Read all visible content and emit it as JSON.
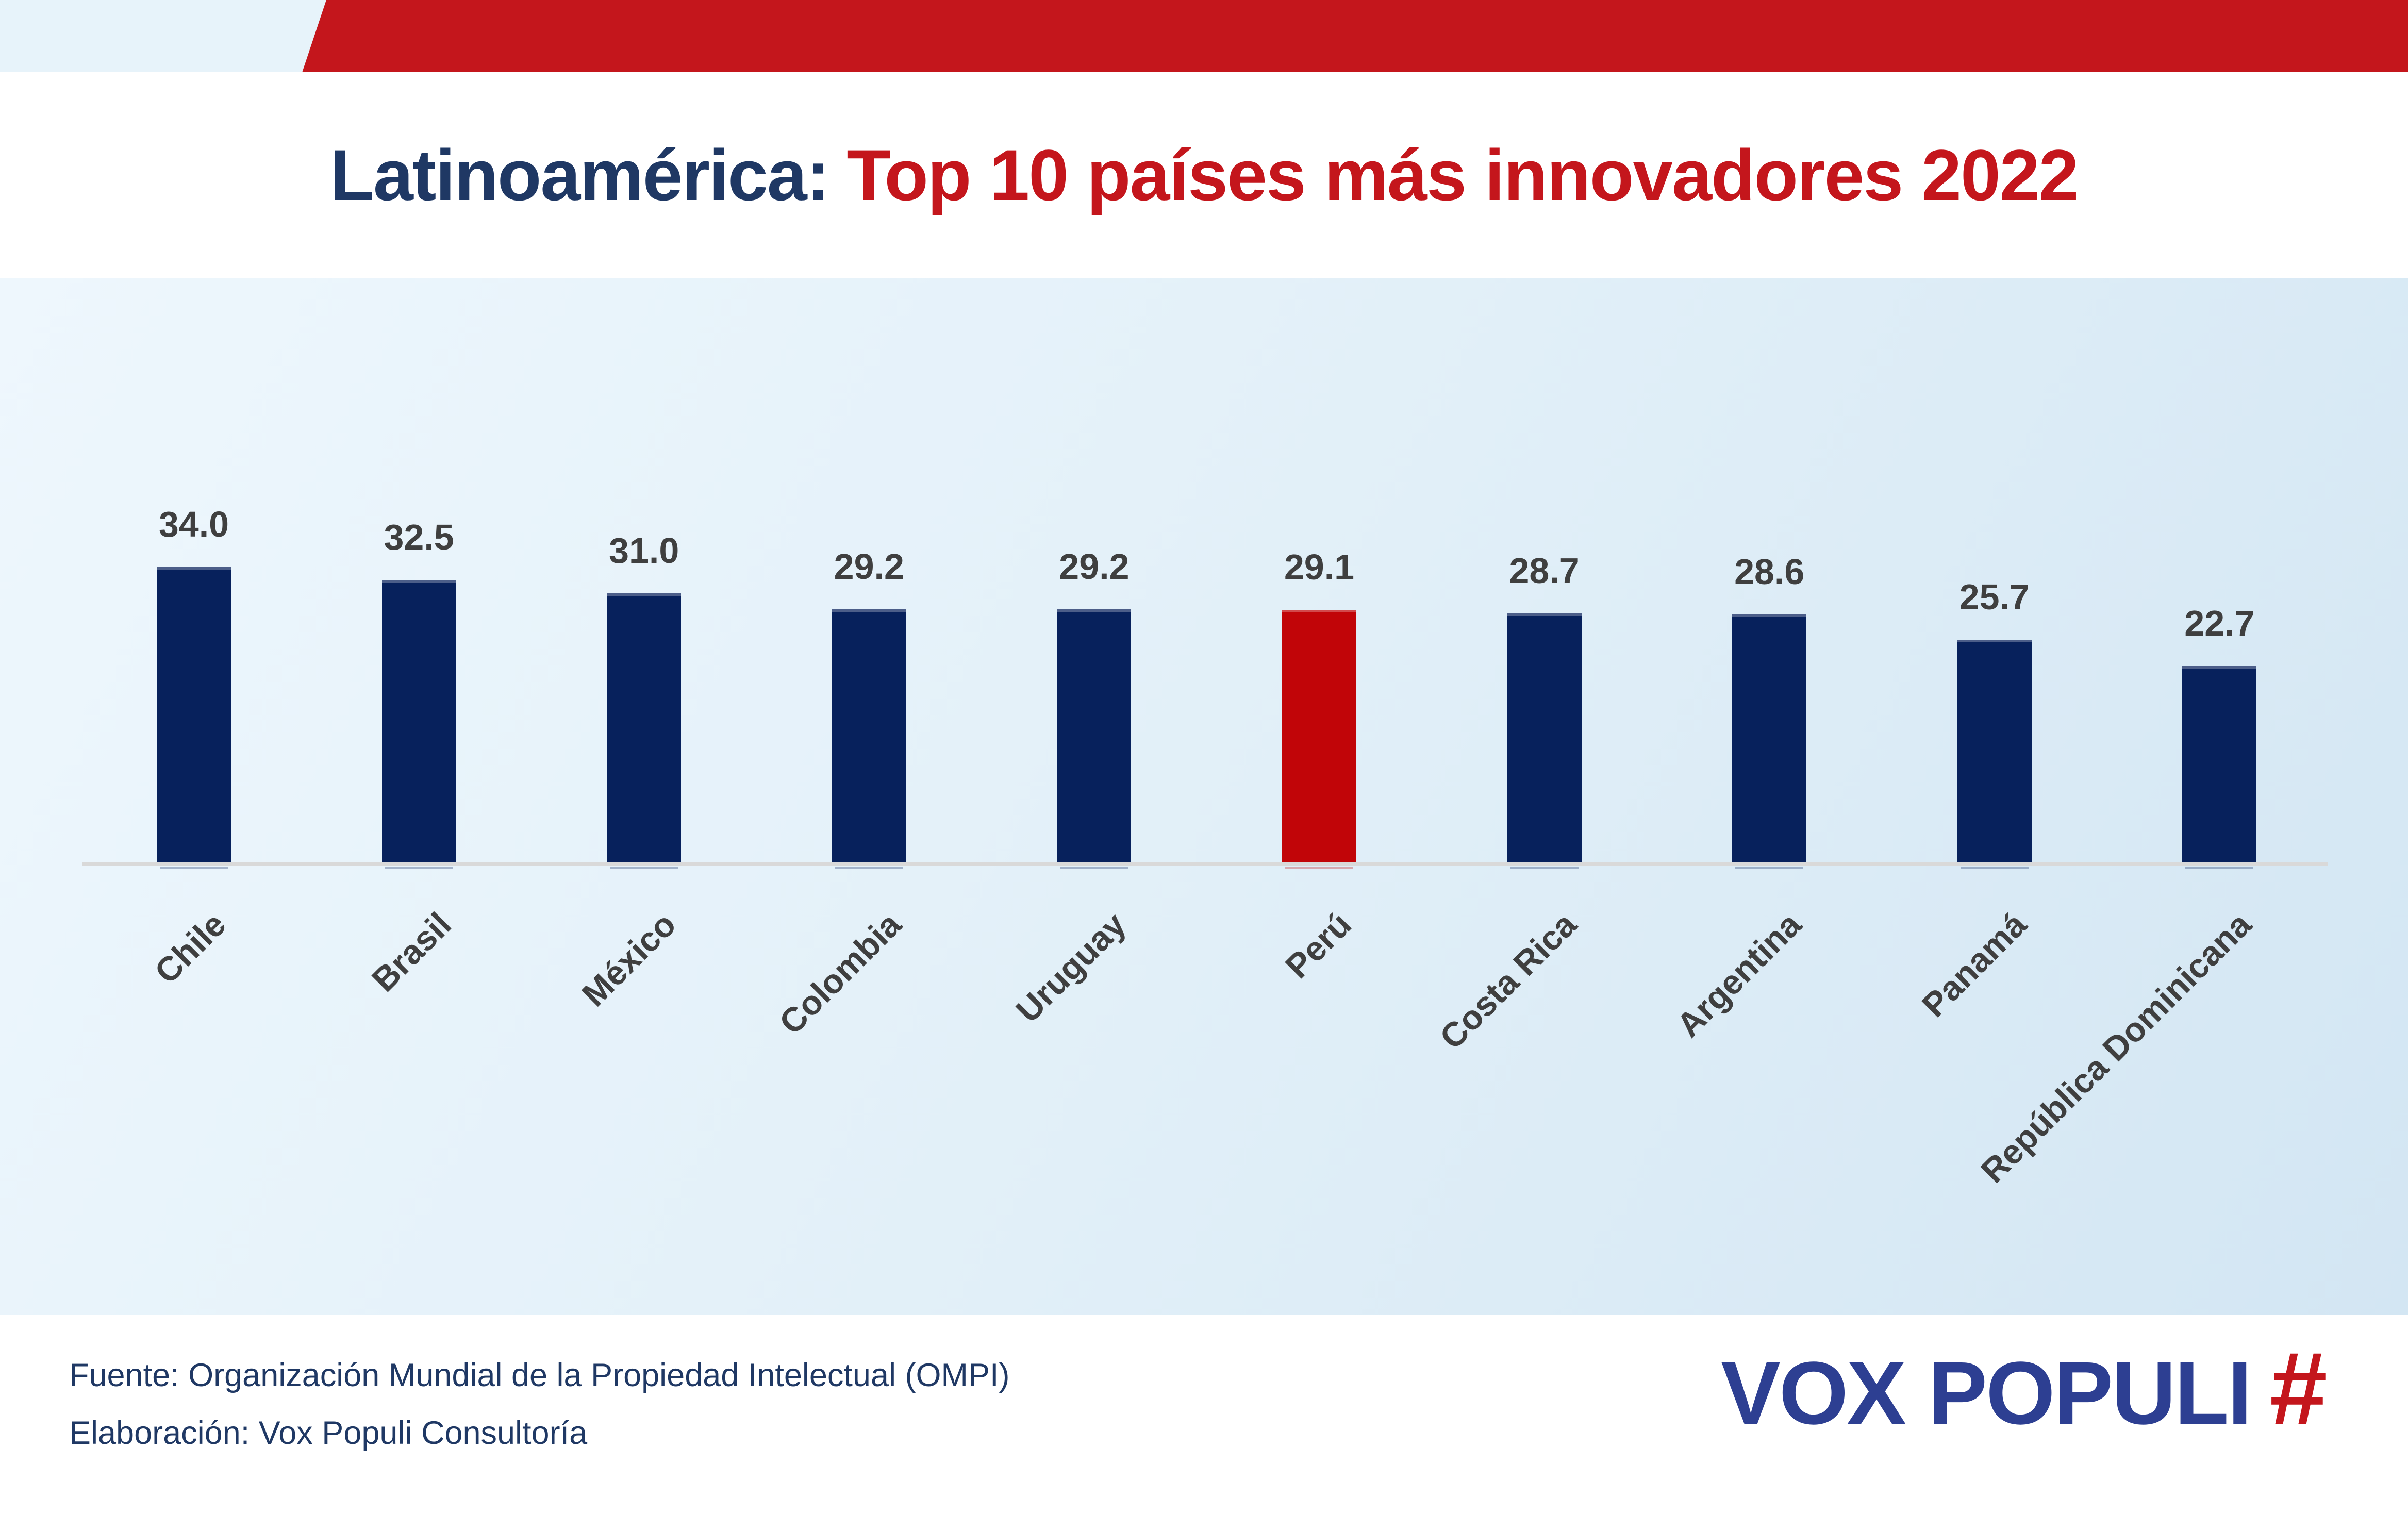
{
  "header": {
    "title_part1": "Latinoamérica:",
    "title_part2": "Top 10 países más innovadores 2022"
  },
  "chart_data": {
    "type": "bar",
    "title": "Latinoamérica: Top 10 países más innovadores 2022",
    "categories": [
      "Chile",
      "Brasil",
      "México",
      "Colombia",
      "Uruguay",
      "Perú",
      "Costa Rica",
      "Argentina",
      "Panamá",
      "República Dominicana"
    ],
    "values": [
      34.0,
      32.5,
      31.0,
      29.2,
      29.2,
      29.1,
      28.7,
      28.6,
      25.7,
      22.7
    ],
    "value_labels": [
      "34.0",
      "32.5",
      "31.0",
      "29.2",
      "29.2",
      "29.1",
      "28.7",
      "28.6",
      "25.7",
      "22.7"
    ],
    "highlight_category": "Perú",
    "bar_color": "#07215c",
    "highlight_color": "#c10508",
    "label_color": "#3f3f3f",
    "axis_line_color": "#d9d9d9",
    "xlabel": "",
    "ylabel": "",
    "ylim": [
      0,
      40
    ],
    "grid": false,
    "legend": false,
    "category_label_rotation_deg": 45,
    "value_labels_shown": true
  },
  "footer": {
    "source": "Fuente: Organización Mundial de la Propiedad Intelectual (OMPI)",
    "elaboration": "Elaboración: Vox Populi Consultoría",
    "logo_text": "VOX POPULI",
    "logo_symbol": "#"
  },
  "colors": {
    "header_ribbon_red": "#c4161c",
    "header_strip_blue": "#e7f3fa",
    "title_navy": "#1f3864",
    "title_red": "#c4161c",
    "chart_bg_light": "#eef7fd",
    "chart_bg_dark": "#d3e6f3",
    "footer_text_navy": "#1f3864",
    "logo_blue": "#2d3f92",
    "logo_hash_red": "#c4161c"
  }
}
